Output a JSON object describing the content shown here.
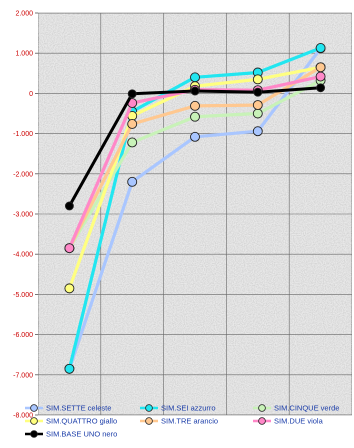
{
  "chart_data": {
    "type": "line",
    "title": "",
    "xlabel": "",
    "ylabel": "",
    "ylim": [
      -8000,
      2000
    ],
    "y_ticks": [
      "2.000",
      "1.000",
      "0",
      "-1.000",
      "-2.000",
      "-3.000",
      "-4.000",
      "-5.000",
      "-6.000",
      "-7.000",
      "-8.000"
    ],
    "x": [
      1,
      2,
      3,
      4,
      5
    ],
    "grid": true,
    "legend_position": "bottom",
    "series": [
      {
        "name": "SIM.SETTE celeste",
        "color": "#a9c6ff",
        "values": [
          -6850,
          -2200,
          -1080,
          -940,
          1120
        ]
      },
      {
        "name": "SIM.SEI azzurro",
        "color": "#22e6f0",
        "values": [
          -6850,
          -450,
          400,
          520,
          1130
        ]
      },
      {
        "name": "SIM.CINQUE verde",
        "color": "#c8f2b8",
        "values": [
          -3850,
          -1220,
          -580,
          -500,
          320
        ]
      },
      {
        "name": "SIM.QUATTRO giallo",
        "color": "#ffff80",
        "values": [
          -4850,
          -560,
          180,
          350,
          650
        ]
      },
      {
        "name": "SIM.TRE arancio",
        "color": "#ffc890",
        "values": [
          -3850,
          -760,
          -310,
          -290,
          650
        ]
      },
      {
        "name": "SIM.DUE viola",
        "color": "#ff88c8",
        "values": [
          -3850,
          -240,
          90,
          80,
          420
        ]
      },
      {
        "name": "SIM.BASE UNO nero",
        "color": "#000000",
        "values": [
          -2800,
          -10,
          60,
          30,
          140
        ]
      }
    ]
  }
}
